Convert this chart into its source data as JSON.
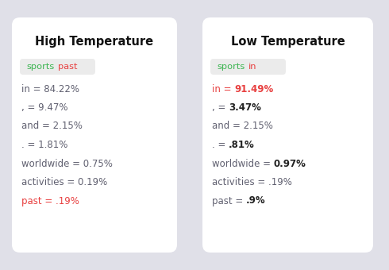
{
  "background_color": "#e0e0e8",
  "card_color": "#ffffff",
  "card1": {
    "title": "High Temperature",
    "tag_bg": "#ebebeb",
    "tags": [
      {
        "text": "sports",
        "color": "#3cb551"
      },
      {
        "text": "past",
        "color": "#e84040"
      }
    ],
    "rows": [
      [
        {
          "t": "in = 84.22%",
          "c": "#606070",
          "b": false
        }
      ],
      [
        {
          "t": ", = 9.47%",
          "c": "#606070",
          "b": false
        }
      ],
      [
        {
          "t": "and = 2.15%",
          "c": "#606070",
          "b": false
        }
      ],
      [
        {
          "t": ". = 1.81%",
          "c": "#606070",
          "b": false
        }
      ],
      [
        {
          "t": "worldwide = 0.75%",
          "c": "#606070",
          "b": false
        }
      ],
      [
        {
          "t": "activities = 0.19%",
          "c": "#606070",
          "b": false
        }
      ],
      [
        {
          "t": "past = .19%",
          "c": "#e84040",
          "b": false
        }
      ]
    ]
  },
  "card2": {
    "title": "Low Temperature",
    "tag_bg": "#ebebeb",
    "tags": [
      {
        "text": "sports",
        "color": "#3cb551"
      },
      {
        "text": "in",
        "color": "#e84040"
      }
    ],
    "rows": [
      [
        {
          "t": "in = ",
          "c": "#e84040",
          "b": false
        },
        {
          "t": "91.49%",
          "c": "#e84040",
          "b": true
        }
      ],
      [
        {
          "t": ", = ",
          "c": "#606070",
          "b": false
        },
        {
          "t": "3.47%",
          "c": "#222222",
          "b": true
        }
      ],
      [
        {
          "t": "and = 2.15%",
          "c": "#606070",
          "b": false
        }
      ],
      [
        {
          "t": ". = ",
          "c": "#606070",
          "b": false
        },
        {
          "t": ".81%",
          "c": "#222222",
          "b": true
        }
      ],
      [
        {
          "t": "worldwide = ",
          "c": "#606070",
          "b": false
        },
        {
          "t": "0.97%",
          "c": "#222222",
          "b": true
        }
      ],
      [
        {
          "t": "activities = .19%",
          "c": "#606070",
          "b": false
        }
      ],
      [
        {
          "t": "past = ",
          "c": "#606070",
          "b": false
        },
        {
          "t": ".9%",
          "c": "#222222",
          "b": true
        }
      ]
    ]
  }
}
